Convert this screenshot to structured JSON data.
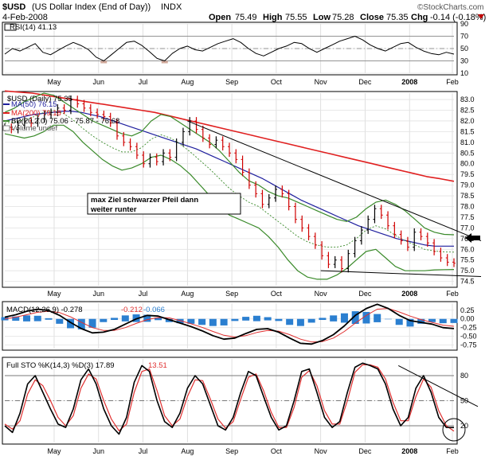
{
  "header": {
    "symbol": "$USD",
    "description": "(US Dollar Index (End of Day))",
    "exchange": "INDX",
    "watermark": "©StockCharts.com",
    "date": "4-Feb-2008",
    "open_label": "Open",
    "open": "75.49",
    "high_label": "High",
    "high": "75.55",
    "low_label": "Low",
    "low": "75.28",
    "close_label": "Close",
    "close": "75.35",
    "chg_label": "Chg",
    "chg": "-0.14 (-0.18%)"
  },
  "x_labels": [
    "May",
    "Jun",
    "Jul",
    "Aug",
    "Sep",
    "Oct",
    "Nov",
    "Dec",
    "2008",
    "Feb"
  ],
  "colors": {
    "price": "#000000",
    "ma50": "#1f1f9e",
    "ma200": "#e02020",
    "bb": "#3a8a2a",
    "macd": "#000000",
    "signal": "#e03030",
    "hist": "#2b7fd0",
    "stok": "#000000",
    "stod": "#e03030",
    "rsi_fill": "#c99a8a",
    "up": "#000000",
    "down": "#d00000"
  },
  "chart_data": [
    {
      "type": "line",
      "title": "RSI(14) 41.13",
      "series": [
        {
          "name": "RSI(14)",
          "values": [
            41,
            50,
            46,
            52,
            58,
            44,
            40,
            47,
            54,
            60,
            55,
            48,
            36,
            30,
            40,
            50,
            60,
            62,
            55,
            45,
            34,
            30,
            42,
            50,
            54,
            48,
            46,
            52,
            58,
            62,
            66,
            60,
            50,
            42,
            38,
            44,
            50,
            54,
            60,
            58,
            50,
            44,
            50,
            56,
            62,
            66,
            70,
            64,
            56,
            50,
            46,
            52,
            58,
            60,
            52,
            46,
            42,
            40,
            44,
            41
          ]
        }
      ],
      "yticks": [
        10,
        30,
        50,
        70,
        90
      ],
      "ylim": [
        10,
        90
      ],
      "reference_lines": [
        30,
        50,
        70
      ]
    },
    {
      "type": "line",
      "title": "$USD (Daily) 75.35",
      "legend": [
        {
          "label": "MA(50) 76.15"
        },
        {
          "label": "MA(200) 79.18"
        },
        {
          "label": "BB(20,2.0) 75.06 - 75.87 - 76.68"
        },
        {
          "label": "Volume undef"
        }
      ],
      "yticks": [
        74.5,
        75.0,
        75.5,
        76.0,
        76.5,
        77.0,
        77.5,
        78.0,
        78.5,
        79.0,
        79.5,
        80.0,
        80.5,
        81.0,
        81.5,
        82.0,
        82.5,
        83.0
      ],
      "ylim": [
        74.3,
        83.3
      ],
      "series": [
        {
          "name": "$USD",
          "values": [
            81.7,
            81.6,
            81.8,
            82.0,
            81.9,
            82.1,
            82.3,
            82.4,
            82.6,
            82.5,
            83.0,
            82.8,
            82.6,
            82.4,
            82.3,
            82.2,
            81.9,
            81.3,
            81.0,
            80.8,
            80.4,
            80.0,
            80.3,
            80.1,
            80.5,
            80.3,
            81.0,
            81.5,
            82.0,
            81.6,
            81.2,
            80.9,
            81.1,
            80.8,
            80.5,
            80.2,
            79.6,
            79.0,
            78.6,
            78.1,
            78.4,
            78.8,
            78.6,
            78.0,
            77.4,
            77.0,
            76.6,
            76.2,
            75.7,
            75.3,
            75.5,
            75.1,
            75.8,
            76.4,
            76.9,
            77.4,
            77.9,
            77.6,
            77.1,
            76.7,
            76.4,
            76.1,
            76.8,
            76.6,
            76.3,
            75.9,
            75.6,
            75.4,
            75.35
          ]
        },
        {
          "name": "MA(50)",
          "values": [
            82.0,
            82.1,
            82.2,
            82.3,
            82.35,
            82.4,
            82.45,
            82.45,
            82.4,
            82.3,
            82.2,
            82.05,
            81.9,
            81.75,
            81.6,
            81.45,
            81.3,
            81.15,
            81.0,
            80.85,
            80.7,
            80.5,
            80.3,
            80.1,
            79.9,
            79.7,
            79.5,
            79.3,
            79.05,
            78.8,
            78.55,
            78.3,
            78.1,
            77.9,
            77.7,
            77.5,
            77.3,
            77.1,
            76.95,
            76.8,
            76.65,
            76.5,
            76.4,
            76.3,
            76.2,
            76.15,
            76.15,
            76.15
          ]
        },
        {
          "name": "MA(200)",
          "values": [
            83.4,
            83.35,
            83.3,
            83.2,
            83.1,
            83.0,
            82.9,
            82.8,
            82.7,
            82.6,
            82.5,
            82.4,
            82.25,
            82.1,
            81.95,
            81.8,
            81.65,
            81.5,
            81.35,
            81.2,
            81.05,
            80.9,
            80.75,
            80.6,
            80.45,
            80.3,
            80.15,
            80.0,
            79.85,
            79.7,
            79.55,
            79.4,
            79.3,
            79.18
          ]
        },
        {
          "name": "BB upper",
          "values": [
            82.4,
            82.6,
            82.9,
            83.1,
            83.3,
            83.2,
            82.9,
            82.6,
            82.3,
            82.0,
            81.8,
            81.6,
            81.4,
            81.3,
            81.5,
            82.0,
            82.3,
            82.2,
            81.9,
            81.6,
            81.3,
            81.0,
            80.6,
            80.1,
            79.6,
            79.2,
            79.0,
            78.7,
            78.5,
            78.4,
            78.2,
            78.0,
            77.8,
            77.6,
            77.4,
            77.3,
            77.5,
            77.9,
            78.2,
            78.3,
            78.1,
            77.8,
            77.4,
            77.0,
            76.8,
            76.7,
            76.68
          ]
        },
        {
          "name": "BB lower",
          "values": [
            81.4,
            81.3,
            81.2,
            81.3,
            81.5,
            81.8,
            81.8,
            81.5,
            81.0,
            80.6,
            80.2,
            79.9,
            79.7,
            79.8,
            80.0,
            80.3,
            80.4,
            80.2,
            79.9,
            79.5,
            79.0,
            78.5,
            78.0,
            77.6,
            77.4,
            77.2,
            77.0,
            76.6,
            76.1,
            75.5,
            75.0,
            74.7,
            74.6,
            74.6,
            74.8,
            75.1,
            75.5,
            75.9,
            76.0,
            75.6,
            75.2,
            75.0,
            75.0,
            75.0,
            75.04,
            75.05,
            75.06
          ]
        }
      ],
      "trendlines": [
        {
          "name": "downtrend",
          "from": [
            "Aug",
            82.0
          ],
          "to": [
            "Feb",
            76.6
          ]
        },
        {
          "name": "support",
          "from": [
            "Nov",
            75.0
          ],
          "to": [
            "Feb",
            75.0
          ]
        }
      ],
      "annotation": "max Ziel schwarzer Pfeil dann weiter runter"
    },
    {
      "type": "line",
      "title": "MACD(12,26,9) -0.278, -0.212, -0.066",
      "legend": [
        {
          "label": "MACD(12,26,9) -0.278"
        },
        {
          "label": "-0.212"
        },
        {
          "label": "-0.066"
        }
      ],
      "yticks": [
        -0.75,
        -0.5,
        -0.25,
        0.0,
        0.25
      ],
      "ylim": [
        -0.85,
        0.45
      ],
      "series": [
        {
          "name": "MACD",
          "values": [
            0.05,
            0.12,
            0.22,
            0.28,
            0.24,
            0.1,
            -0.1,
            -0.28,
            -0.4,
            -0.38,
            -0.3,
            -0.15,
            0.0,
            0.1,
            0.08,
            -0.02,
            -0.12,
            -0.22,
            -0.34,
            -0.48,
            -0.58,
            -0.55,
            -0.42,
            -0.3,
            -0.28,
            -0.38,
            -0.55,
            -0.7,
            -0.72,
            -0.62,
            -0.45,
            -0.2,
            0.1,
            0.3,
            0.42,
            0.3,
            0.1,
            -0.05,
            -0.1,
            -0.15,
            -0.25,
            -0.278
          ]
        },
        {
          "name": "Signal",
          "values": [
            0.0,
            0.05,
            0.12,
            0.19,
            0.22,
            0.18,
            0.06,
            -0.1,
            -0.25,
            -0.33,
            -0.33,
            -0.25,
            -0.13,
            -0.02,
            0.04,
            0.03,
            -0.05,
            -0.14,
            -0.24,
            -0.36,
            -0.47,
            -0.52,
            -0.48,
            -0.39,
            -0.33,
            -0.35,
            -0.45,
            -0.58,
            -0.66,
            -0.65,
            -0.55,
            -0.36,
            -0.12,
            0.1,
            0.28,
            0.3,
            0.2,
            0.08,
            -0.02,
            -0.1,
            -0.18,
            -0.212
          ]
        },
        {
          "name": "Histogram",
          "values": [
            0.05,
            0.07,
            0.1,
            0.09,
            0.02,
            -0.08,
            -0.16,
            -0.18,
            -0.15,
            -0.05,
            0.03,
            0.1,
            0.13,
            0.12,
            0.04,
            -0.05,
            -0.07,
            -0.08,
            -0.1,
            -0.12,
            -0.11,
            -0.03,
            0.06,
            0.09,
            0.05,
            -0.03,
            -0.1,
            -0.12,
            -0.06,
            0.03,
            0.1,
            0.16,
            0.22,
            0.2,
            0.14,
            0.0,
            -0.1,
            -0.13,
            -0.08,
            -0.05,
            -0.07,
            -0.066
          ]
        }
      ]
    },
    {
      "type": "line",
      "title": "Full STO %K(14,3) %D(3) 17.89, 13.51",
      "legend": [
        {
          "label": "Full STO %K(14,3) %D(3) 17.89"
        },
        {
          "label": "13.51"
        }
      ],
      "yticks": [
        20,
        50,
        80
      ],
      "ylim": [
        0,
        100
      ],
      "reference_lines": [
        20,
        50,
        80
      ],
      "series": [
        {
          "name": "%K",
          "values": [
            20,
            12,
            35,
            70,
            80,
            60,
            40,
            22,
            18,
            40,
            75,
            88,
            70,
            40,
            20,
            10,
            30,
            72,
            92,
            85,
            50,
            25,
            18,
            35,
            65,
            80,
            70,
            45,
            20,
            15,
            30,
            60,
            85,
            80,
            55,
            30,
            15,
            20,
            50,
            85,
            88,
            60,
            30,
            18,
            25,
            60,
            90,
            95,
            92,
            88,
            70,
            40,
            20,
            30,
            65,
            80,
            60,
            30,
            18,
            17.89
          ]
        },
        {
          "name": "%D",
          "values": [
            22,
            16,
            26,
            58,
            75,
            68,
            50,
            30,
            20,
            32,
            65,
            82,
            76,
            50,
            28,
            14,
            22,
            60,
            85,
            88,
            62,
            32,
            20,
            28,
            55,
            75,
            74,
            52,
            28,
            17,
            25,
            52,
            78,
            82,
            62,
            36,
            18,
            18,
            42,
            78,
            86,
            68,
            38,
            22,
            22,
            50,
            84,
            93,
            93,
            90,
            76,
            48,
            26,
            26,
            55,
            76,
            66,
            38,
            20,
            13.51
          ]
        }
      ],
      "trendlines": [
        {
          "name": "sto-downtrend",
          "from": [
            "2008",
            92
          ],
          "to": [
            "Feb",
            55
          ]
        }
      ]
    }
  ]
}
